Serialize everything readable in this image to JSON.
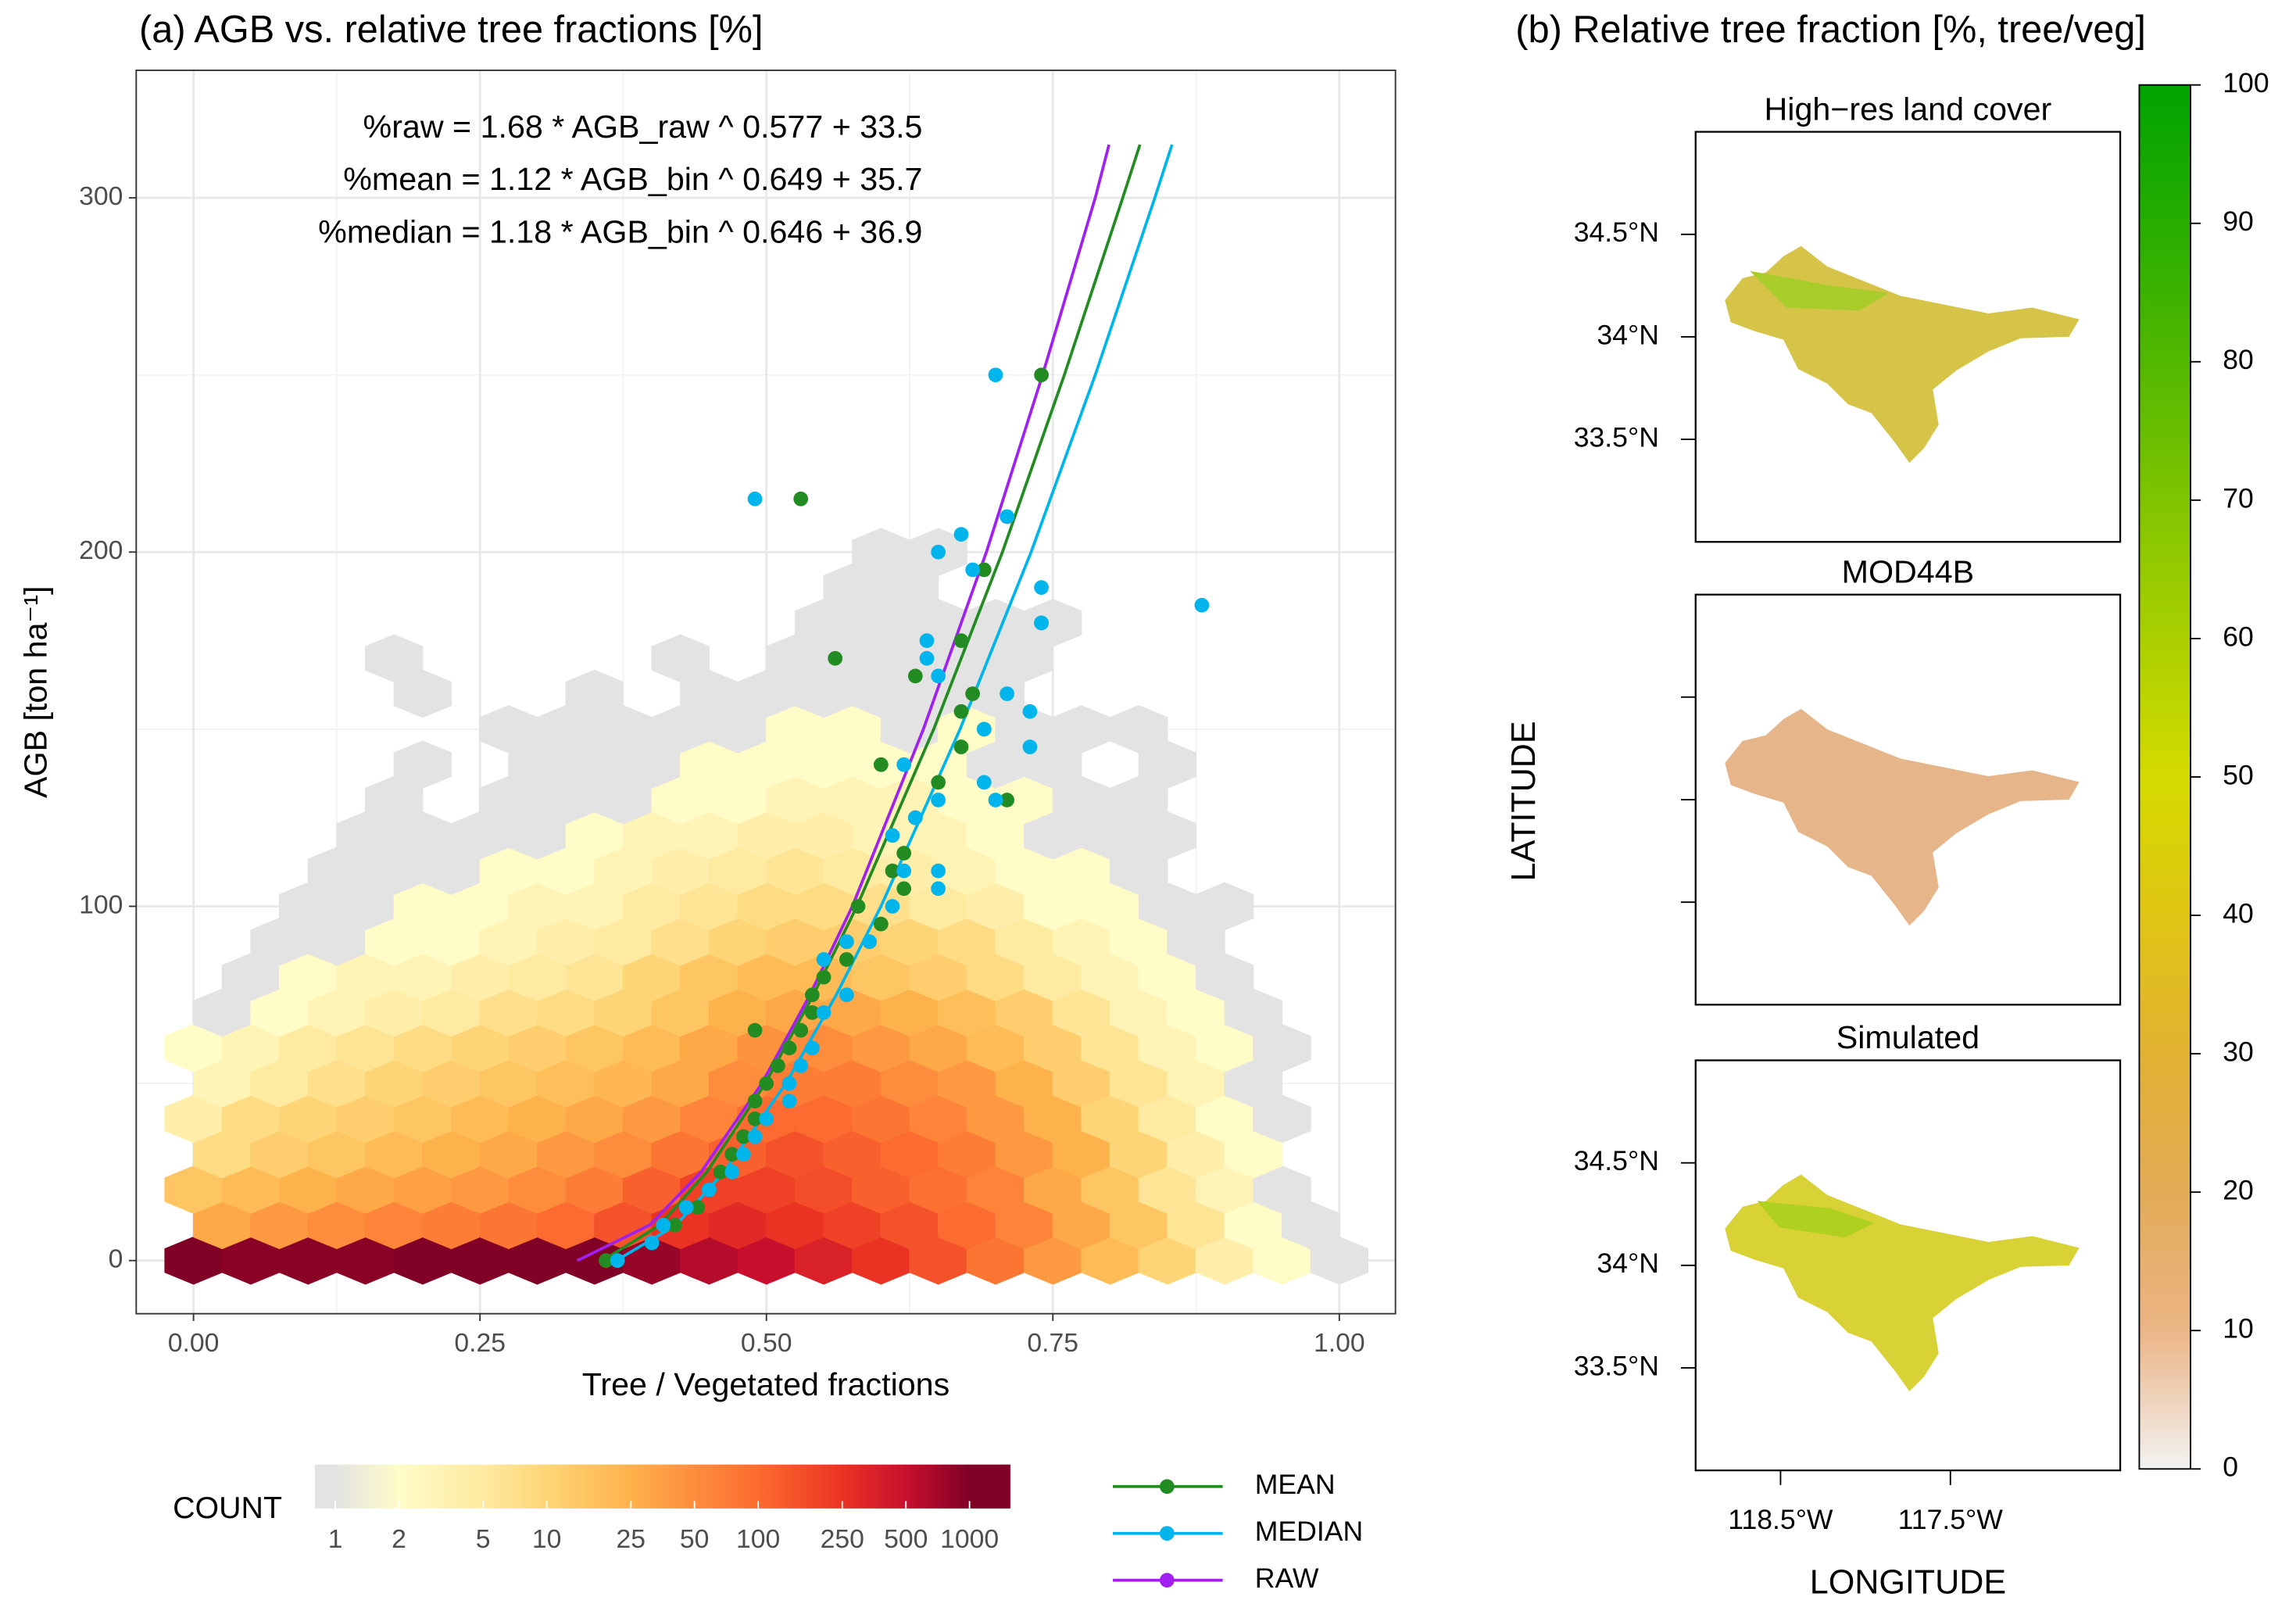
{
  "chart_data": [
    {
      "type": "hexbin",
      "title": "(a) AGB vs. relative tree fractions [%]",
      "x_label": "Tree / Vegetated fractions",
      "y_label": "AGB [ton ha⁻¹]",
      "xlim": [
        -0.05,
        1.049
      ],
      "ylim": [
        -15,
        336
      ],
      "xticks": [
        {
          "value": 0,
          "label": "0.00"
        },
        {
          "value": 0.25,
          "label": "0.25"
        },
        {
          "value": 0.5,
          "label": "0.50"
        },
        {
          "value": 0.75,
          "label": "0.75"
        },
        {
          "value": 1,
          "label": "1.00"
        }
      ],
      "yticks": [
        0,
        100,
        200,
        300
      ],
      "xminor": [
        0.125,
        0.375,
        0.625,
        0.875
      ],
      "yminor": [
        50,
        150,
        250
      ],
      "grid": true,
      "hexbin": {
        "hex_x": [
          [
            0,
            0.05,
            0.1,
            0.15,
            0.2,
            0.25,
            0.3,
            0.35,
            0.4,
            0.45,
            0.5,
            0.55,
            0.6,
            0.65,
            0.7,
            0.75,
            0.8,
            0.85,
            0.9,
            0.95,
            1
          ],
          [
            0.025,
            0.075,
            0.125,
            0.175,
            0.225,
            0.275,
            0.325,
            0.375,
            0.425,
            0.475,
            0.525,
            0.575,
            0.625,
            0.675,
            0.725,
            0.775,
            0.825,
            0.875,
            0.925,
            0.975
          ]
        ],
        "y": [
          0,
          10,
          20,
          30,
          40,
          50,
          60,
          70,
          80,
          90,
          100,
          110,
          120,
          130,
          140,
          150,
          160,
          170,
          180,
          190,
          200
        ],
        "counts": [
          [
            1000,
            900,
            900,
            900,
            1000,
            1000,
            1000,
            1000,
            800,
            600,
            500,
            350,
            250,
            150,
            80,
            40,
            20,
            10,
            4,
            2,
            1
          ],
          [
            30,
            40,
            50,
            60,
            70,
            80,
            100,
            150,
            250,
            300,
            250,
            200,
            150,
            100,
            60,
            30,
            15,
            6,
            2,
            1
          ],
          [
            15,
            20,
            25,
            30,
            35,
            40,
            50,
            70,
            120,
            200,
            200,
            160,
            120,
            90,
            60,
            30,
            15,
            6,
            3,
            1,
            null
          ],
          [
            8,
            12,
            15,
            20,
            25,
            30,
            40,
            50,
            80,
            120,
            150,
            120,
            100,
            70,
            40,
            25,
            10,
            4,
            2,
            null
          ],
          [
            4,
            8,
            10,
            12,
            15,
            20,
            25,
            30,
            40,
            60,
            100,
            100,
            80,
            60,
            40,
            25,
            10,
            5,
            2,
            1,
            null
          ],
          [
            3,
            5,
            7,
            10,
            12,
            15,
            18,
            22,
            30,
            50,
            70,
            70,
            50,
            40,
            25,
            12,
            6,
            3,
            1,
            null
          ],
          [
            2,
            3,
            5,
            6,
            8,
            10,
            12,
            15,
            20,
            30,
            45,
            50,
            40,
            30,
            20,
            12,
            6,
            3,
            2,
            1,
            null
          ],
          [
            1,
            2,
            3,
            4,
            5,
            7,
            8,
            10,
            15,
            25,
            30,
            30,
            25,
            18,
            12,
            6,
            3,
            2,
            1,
            null
          ],
          [
            null,
            1,
            2,
            3,
            3,
            4,
            5,
            6,
            10,
            15,
            20,
            20,
            15,
            12,
            8,
            5,
            3,
            2,
            1,
            null,
            null
          ],
          [
            null,
            1,
            1,
            2,
            2,
            3,
            4,
            5,
            7,
            10,
            12,
            12,
            10,
            8,
            5,
            3,
            2,
            1,
            null,
            null
          ],
          [
            null,
            null,
            1,
            1,
            2,
            2,
            3,
            3,
            5,
            6,
            8,
            8,
            7,
            5,
            4,
            2,
            2,
            1,
            1,
            null,
            null
          ],
          [
            null,
            null,
            1,
            1,
            1,
            2,
            2,
            3,
            4,
            5,
            6,
            5,
            4,
            3,
            2,
            2,
            1,
            null,
            null,
            null
          ],
          [
            null,
            null,
            null,
            1,
            1,
            1,
            1,
            2,
            3,
            3,
            4,
            4,
            3,
            3,
            2,
            1,
            1,
            1,
            null,
            null,
            null
          ],
          [
            null,
            null,
            null,
            1,
            null,
            1,
            1,
            1,
            2,
            2,
            3,
            3,
            3,
            2,
            2,
            1,
            1,
            null,
            null,
            null
          ],
          [
            null,
            null,
            null,
            null,
            1,
            null,
            1,
            1,
            1,
            2,
            2,
            2,
            2,
            2,
            1,
            1,
            null,
            1,
            null,
            null,
            null
          ],
          [
            null,
            null,
            null,
            null,
            null,
            1,
            1,
            1,
            1,
            1,
            2,
            2,
            1,
            2,
            1,
            1,
            1,
            null,
            null,
            null
          ],
          [
            null,
            null,
            null,
            null,
            1,
            null,
            null,
            1,
            null,
            1,
            1,
            1,
            1,
            1,
            1,
            null,
            null,
            null,
            null,
            null,
            null
          ],
          [
            null,
            null,
            null,
            1,
            null,
            null,
            null,
            null,
            1,
            null,
            1,
            1,
            1,
            1,
            1,
            null,
            null,
            null,
            null,
            null
          ],
          [
            null,
            null,
            null,
            null,
            null,
            null,
            null,
            null,
            null,
            null,
            null,
            1,
            1,
            1,
            1,
            1,
            null,
            null,
            null,
            null,
            null
          ],
          [
            null,
            null,
            null,
            null,
            null,
            null,
            null,
            null,
            null,
            null,
            null,
            1,
            1,
            null,
            null,
            null,
            null,
            null,
            null,
            null
          ],
          [
            null,
            null,
            null,
            null,
            null,
            null,
            null,
            null,
            null,
            null,
            null,
            null,
            1,
            1,
            null,
            null,
            null,
            null,
            null,
            null,
            null
          ]
        ]
      },
      "count_label": "COUNT",
      "count_lim": [
        0.8,
        1560
      ],
      "count_ticks": [
        1,
        2,
        5,
        10,
        25,
        50,
        100,
        250,
        500,
        1000
      ],
      "count_colors": [
        "#e3e3e3",
        "#fffcc8",
        "#feeaa0",
        "#fed576",
        "#feb24c",
        "#fd8d3c",
        "#fc6b2f",
        "#ea3323",
        "#c8102e",
        "#800026"
      ],
      "series": [
        {
          "name": "MEAN",
          "color": "#228b22",
          "fit_label": "%mean = 1.12 * AGB_bin ^ 0.649 + 35.7",
          "x": [
            0.36,
            0.4,
            0.42,
            0.44,
            0.45,
            0.46,
            0.47,
            0.48,
            0.49,
            0.49,
            0.5,
            0.51,
            0.52,
            0.53,
            0.54,
            0.54,
            0.55,
            0.57,
            0.57,
            0.6,
            0.58,
            0.62,
            0.61,
            0.62,
            0.63,
            0.65,
            0.6,
            0.67,
            0.67,
            0.68,
            0.63,
            0.56,
            0.67,
            0.74,
            0.69,
            0.53,
            0.74,
            0.71,
            0.69,
            0.49
          ],
          "values": [
            0,
            5,
            10,
            15,
            20,
            25,
            30,
            35,
            40,
            45,
            50,
            55,
            60,
            65,
            70,
            75,
            80,
            85,
            90,
            95,
            100,
            105,
            110,
            115,
            125,
            135,
            140,
            145,
            155,
            160,
            165,
            170,
            175,
            180,
            195,
            215,
            250,
            130,
            150,
            65
          ],
          "curve_x": [
            0.357,
            0.407,
            0.448,
            0.499,
            0.541,
            0.579,
            0.646,
            0.706,
            0.76,
            0.811,
            0.826
          ],
          "curve_y": [
            0,
            10,
            25,
            50,
            75,
            100,
            150,
            200,
            250,
            300,
            315
          ]
        },
        {
          "name": "MEDIAN",
          "color": "#00b4ec",
          "fit_label": "%median = 1.18 * AGB_bin ^ 0.646 + 36.9",
          "x": [
            0.37,
            0.4,
            0.41,
            0.43,
            0.45,
            0.47,
            0.48,
            0.49,
            0.5,
            0.52,
            0.52,
            0.53,
            0.54,
            0.55,
            0.57,
            0.55,
            0.57,
            0.59,
            0.61,
            0.62,
            0.65,
            0.65,
            0.61,
            0.63,
            0.65,
            0.69,
            0.62,
            0.7,
            0.73,
            0.71,
            0.69,
            0.73,
            0.65,
            0.64,
            0.64,
            0.74,
            0.74,
            0.65,
            0.67,
            0.71,
            0.49,
            0.7,
            0.88,
            0.68
          ],
          "values": [
            0,
            5,
            10,
            15,
            20,
            25,
            30,
            35,
            40,
            45,
            50,
            55,
            60,
            70,
            75,
            85,
            90,
            90,
            100,
            110,
            105,
            110,
            120,
            125,
            130,
            135,
            140,
            130,
            145,
            160,
            150,
            155,
            165,
            170,
            175,
            180,
            190,
            200,
            205,
            210,
            215,
            250,
            185,
            195
          ],
          "curve_x": [
            0.369,
            0.421,
            0.463,
            0.517,
            0.561,
            0.6,
            0.669,
            0.731,
            0.787,
            0.839,
            0.854
          ],
          "curve_y": [
            0,
            10,
            25,
            50,
            75,
            100,
            150,
            200,
            250,
            300,
            315
          ]
        },
        {
          "name": "RAW",
          "color": "#a020f0",
          "fit_label": "%raw = 1.68 * AGB_raw ^ 0.577 + 33.5",
          "curve_x": [
            0.335,
            0.398,
            0.443,
            0.496,
            0.538,
            0.575,
            0.637,
            0.692,
            0.741,
            0.787,
            0.799
          ],
          "curve_y": [
            0,
            10,
            25,
            50,
            75,
            100,
            150,
            200,
            250,
            300,
            315
          ]
        }
      ]
    },
    {
      "type": "map",
      "title": "(b) Relative tree fraction [%, tree/veg]",
      "x_label": "LONGITUDE",
      "y_label": "LATITUDE",
      "xlim": [
        -119,
        -116.5
      ],
      "ylim": [
        33,
        35
      ],
      "xticks": [
        {
          "value": -118.5,
          "label": "118.5°W"
        },
        {
          "value": -117.5,
          "label": "117.5°W"
        }
      ],
      "yticks": [
        {
          "value": 33.5,
          "label": "33.5°N"
        },
        {
          "value": 34,
          "label": "34°N"
        },
        {
          "value": 34.5,
          "label": "34.5°N"
        }
      ],
      "panels": [
        {
          "title": "High−res land cover",
          "ytick_labels": true
        },
        {
          "title": "MOD44B",
          "ytick_labels": false
        },
        {
          "title": "Simulated",
          "ytick_labels": true
        }
      ],
      "colorbar": {
        "lim": [
          0,
          100
        ],
        "ticks": [
          0,
          10,
          20,
          30,
          40,
          50,
          60,
          70,
          80,
          90,
          100
        ],
        "colors": [
          "#f2f2f2",
          "#ebb586",
          "#e2ab56",
          "#e1b232",
          "#e0c514",
          "#d4db00",
          "#aad000",
          "#7fc400",
          "#52b800",
          "#26ad00",
          "#00a300"
        ]
      }
    }
  ]
}
